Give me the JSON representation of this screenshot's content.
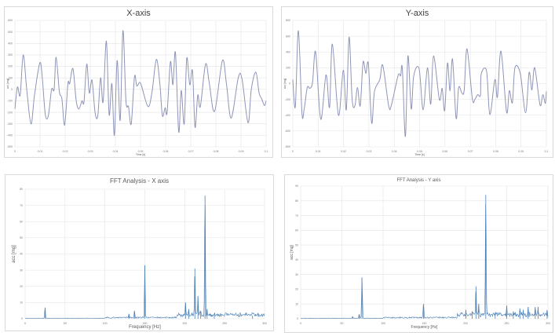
{
  "colors": {
    "time_line": "#8e94b8",
    "fft_line": "#4a7fb5",
    "grid": "#e3e3e3",
    "text": "#595959"
  },
  "chart_data": [
    {
      "type": "line",
      "title": "X-axis",
      "xlabel": "Time [s]",
      "ylabel": "acc [mg]",
      "xlim": [
        0,
        0.1
      ],
      "ylim": [
        -500,
        600
      ],
      "xticks": [
        0,
        0.01,
        0.02,
        0.03,
        0.04,
        0.05,
        0.06,
        0.07,
        0.08,
        0.09,
        0.1
      ],
      "yticks": [
        -500,
        -400,
        -300,
        -200,
        -100,
        0,
        100,
        200,
        300,
        400,
        500,
        600
      ],
      "grid": true,
      "smooth": true,
      "x": [
        0,
        0.001,
        0.0021,
        0.0033,
        0.0047,
        0.0064,
        0.0078,
        0.0099,
        0.0109,
        0.0121,
        0.0133,
        0.0146,
        0.0156,
        0.0164,
        0.0177,
        0.0187,
        0.0198,
        0.0211,
        0.0218,
        0.0231,
        0.0244,
        0.0255,
        0.0267,
        0.0275,
        0.0286,
        0.0296,
        0.0307,
        0.0319,
        0.033,
        0.0341,
        0.0351,
        0.0364,
        0.0375,
        0.0386,
        0.0396,
        0.0407,
        0.0419,
        0.043,
        0.0442,
        0.0452,
        0.0463,
        0.0476,
        0.0485,
        0.0496,
        0.0504,
        0.053,
        0.0546,
        0.0563,
        0.0577,
        0.0587,
        0.0598,
        0.0606,
        0.0619,
        0.0629,
        0.0639,
        0.0652,
        0.0662,
        0.0674,
        0.0684,
        0.0696,
        0.0707,
        0.0717,
        0.0728,
        0.0738,
        0.0759,
        0.0774,
        0.0795,
        0.0826,
        0.0842,
        0.0861,
        0.0889,
        0.0904,
        0.0928,
        0.0941,
        0.0959,
        0.0972,
        0.0982,
        0.0993,
        0.1
      ],
      "y": [
        -170,
        20,
        -50,
        300,
        0,
        -300,
        -50,
        230,
        100,
        -220,
        -230,
        0,
        0,
        280,
        -20,
        -80,
        -310,
        50,
        50,
        180,
        -100,
        -170,
        -100,
        -110,
        220,
        -30,
        80,
        -200,
        -230,
        100,
        -110,
        420,
        -220,
        50,
        -400,
        250,
        -270,
        510,
        -100,
        -150,
        -300,
        110,
        30,
        60,
        30,
        -150,
        -20,
        260,
        50,
        -230,
        -160,
        -200,
        240,
        40,
        320,
        -370,
        -10,
        -300,
        270,
        40,
        160,
        -330,
        -50,
        -150,
        220,
        50,
        -190,
        250,
        50,
        -250,
        100,
        90,
        -290,
        0,
        150,
        -30,
        -80,
        -140,
        -100
      ]
    },
    {
      "type": "line",
      "title": "Y-axis",
      "xlabel": "Time [s]",
      "ylabel": "acc [mg]",
      "xlim": [
        0,
        0.1
      ],
      "ylim": [
        -800,
        800
      ],
      "xticks": [
        0,
        0.01,
        0.02,
        0.03,
        0.04,
        0.05,
        0.06,
        0.07,
        0.08,
        0.09,
        0.1
      ],
      "yticks": [
        -800,
        -600,
        -400,
        -200,
        0,
        200,
        400,
        600,
        800
      ],
      "grid": true,
      "smooth": true,
      "x": [
        0,
        0.001,
        0.0022,
        0.0036,
        0.0045,
        0.0057,
        0.0068,
        0.0078,
        0.009,
        0.011,
        0.0131,
        0.0145,
        0.0156,
        0.018,
        0.0199,
        0.0211,
        0.0222,
        0.0234,
        0.0245,
        0.0255,
        0.0266,
        0.0277,
        0.0288,
        0.0298,
        0.0311,
        0.0322,
        0.0343,
        0.0355,
        0.0378,
        0.0389,
        0.0415,
        0.0425,
        0.0432,
        0.0444,
        0.0454,
        0.0467,
        0.0477,
        0.0498,
        0.0514,
        0.0531,
        0.0544,
        0.0555,
        0.0578,
        0.0589,
        0.0599,
        0.061,
        0.062,
        0.063,
        0.0644,
        0.0654,
        0.0667,
        0.0676,
        0.0687,
        0.0708,
        0.0718,
        0.0729,
        0.074,
        0.0743,
        0.0764,
        0.0777,
        0.0797,
        0.0807,
        0.0821,
        0.0843,
        0.0854,
        0.0866,
        0.0876,
        0.0897,
        0.0918,
        0.0932,
        0.0943,
        0.0954,
        0.0975,
        0.0986,
        0.0996,
        0.1
      ],
      "y": [
        50,
        -290,
        670,
        -370,
        -320,
        -50,
        -60,
        20,
        400,
        -450,
        110,
        -300,
        500,
        -400,
        170,
        -330,
        590,
        -200,
        -280,
        -50,
        -280,
        270,
        130,
        250,
        -500,
        -100,
        50,
        230,
        -280,
        -270,
        100,
        100,
        190,
        -670,
        350,
        -320,
        100,
        190,
        -330,
        200,
        -260,
        350,
        -200,
        -60,
        -340,
        260,
        -90,
        310,
        -440,
        -50,
        -120,
        -80,
        440,
        -190,
        -200,
        -140,
        -150,
        120,
        160,
        -390,
        50,
        -170,
        410,
        -360,
        -90,
        -240,
        200,
        130,
        -370,
        140,
        -80,
        200,
        -270,
        -140,
        -250,
        -100
      ]
    },
    {
      "type": "line",
      "title": "FFT Analysis - X axis",
      "xlabel": "Frequency [Hz]",
      "ylabel": "acc [mg]",
      "xlim": [
        0,
        300
      ],
      "ylim": [
        0,
        80
      ],
      "xticks": [
        0,
        50,
        100,
        150,
        200,
        250,
        300
      ],
      "yticks": [
        0,
        10,
        20,
        30,
        40,
        50,
        60,
        70,
        80
      ],
      "grid": true,
      "peaks": [
        {
          "x": 25,
          "y": 7
        },
        {
          "x": 130,
          "y": 3
        },
        {
          "x": 137,
          "y": 5
        },
        {
          "x": 150,
          "y": 33
        },
        {
          "x": 201,
          "y": 10
        },
        {
          "x": 205,
          "y": 6
        },
        {
          "x": 212.7,
          "y": 31
        },
        {
          "x": 216.6,
          "y": 14
        },
        {
          "x": 225.4,
          "y": 76
        },
        {
          "x": 220,
          "y": 5
        },
        {
          "x": 228,
          "y": 6
        },
        {
          "x": 237,
          "y": 3
        },
        {
          "x": 285,
          "y": 2
        }
      ]
    },
    {
      "type": "line",
      "title": "FFT Analysis - Y axis",
      "xlabel": "Frequency [Hz]",
      "ylabel": "acc [mg]",
      "xlim": [
        0,
        300
      ],
      "ylim": [
        0,
        90
      ],
      "xticks": [
        0,
        50,
        100,
        150,
        200,
        250,
        300
      ],
      "yticks": [
        0,
        10,
        20,
        30,
        40,
        50,
        60,
        70,
        80,
        90
      ],
      "grid": true,
      "peaks": [
        {
          "x": 63,
          "y": 1.5
        },
        {
          "x": 71,
          "y": 3
        },
        {
          "x": 74.4,
          "y": 28
        },
        {
          "x": 149,
          "y": 10
        },
        {
          "x": 200.5,
          "y": 6
        },
        {
          "x": 208,
          "y": 5
        },
        {
          "x": 212.7,
          "y": 22
        },
        {
          "x": 216,
          "y": 10
        },
        {
          "x": 224.6,
          "y": 84
        },
        {
          "x": 236,
          "y": 4
        },
        {
          "x": 250,
          "y": 9
        },
        {
          "x": 258,
          "y": 5
        },
        {
          "x": 266,
          "y": 7
        },
        {
          "x": 270,
          "y": 6
        },
        {
          "x": 276,
          "y": 8
        },
        {
          "x": 284.6,
          "y": 8
        },
        {
          "x": 288,
          "y": 8
        },
        {
          "x": 299,
          "y": 6
        }
      ]
    }
  ]
}
